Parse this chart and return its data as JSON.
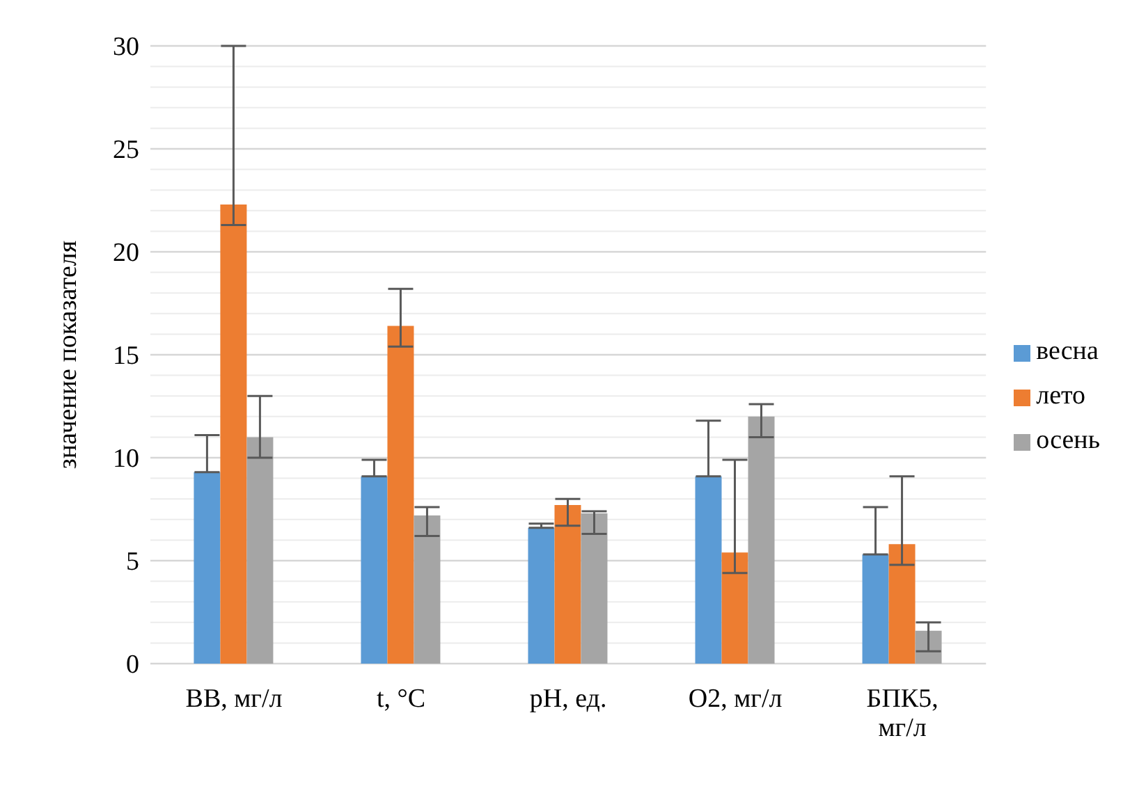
{
  "chart_data": {
    "type": "bar",
    "ylabel": "значение показателя",
    "categories": [
      "ВВ, мг/л",
      "t, °C",
      "pH, ед.",
      "O2, мг/л",
      "БПК5, мг/л"
    ],
    "series": [
      {
        "name": "весна",
        "color": "#5b9bd5",
        "values": [
          9.3,
          9.1,
          6.6,
          9.1,
          5.3
        ],
        "errors": [
          [
            9.3,
            11.1
          ],
          [
            9.1,
            9.9
          ],
          [
            6.6,
            6.8
          ],
          [
            9.1,
            11.8
          ],
          [
            5.3,
            7.6
          ]
        ]
      },
      {
        "name": "лето",
        "color": "#ed7d31",
        "values": [
          22.3,
          16.4,
          7.7,
          5.4,
          5.8
        ],
        "errors": [
          [
            21.3,
            30
          ],
          [
            15.4,
            18.2
          ],
          [
            6.7,
            8.0
          ],
          [
            4.4,
            9.9
          ],
          [
            4.8,
            9.1
          ]
        ]
      },
      {
        "name": "осень",
        "color": "#a5a5a5",
        "values": [
          11.0,
          7.2,
          7.3,
          12.0,
          1.6
        ],
        "errors": [
          [
            10.0,
            13.0
          ],
          [
            6.2,
            7.6
          ],
          [
            6.3,
            7.4
          ],
          [
            11.0,
            12.6
          ],
          [
            0.6,
            2.0
          ]
        ]
      }
    ],
    "ylim": [
      0,
      30
    ],
    "yticks": [
      0,
      {
        "value": 1,
        "label": null
      },
      {
        "value": 2,
        "label": null
      },
      {
        "value": 3,
        "label": null
      },
      {
        "value": 4,
        "label": null
      },
      5,
      {
        "value": 6,
        "label": null
      },
      {
        "value": 7,
        "label": null
      },
      {
        "value": 8,
        "label": null
      },
      {
        "value": 9,
        "label": null
      },
      10,
      {
        "value": 11,
        "label": null
      },
      {
        "value": 12,
        "label": null
      },
      {
        "value": 13,
        "label": null
      },
      {
        "value": 14,
        "label": null
      },
      15,
      {
        "value": 16,
        "label": null
      },
      {
        "value": 17,
        "label": null
      },
      {
        "value": 18,
        "label": null
      },
      {
        "value": 19,
        "label": null
      },
      20,
      {
        "value": 21,
        "label": null
      },
      {
        "value": 22,
        "label": null
      },
      {
        "value": 23,
        "label": null
      },
      {
        "value": 24,
        "label": null
      },
      25,
      {
        "value": 26,
        "label": null
      },
      {
        "value": 27,
        "label": null
      },
      {
        "value": 28,
        "label": null
      },
      {
        "value": 29,
        "label": null
      },
      30
    ],
    "grid": "y",
    "legend": "right"
  }
}
